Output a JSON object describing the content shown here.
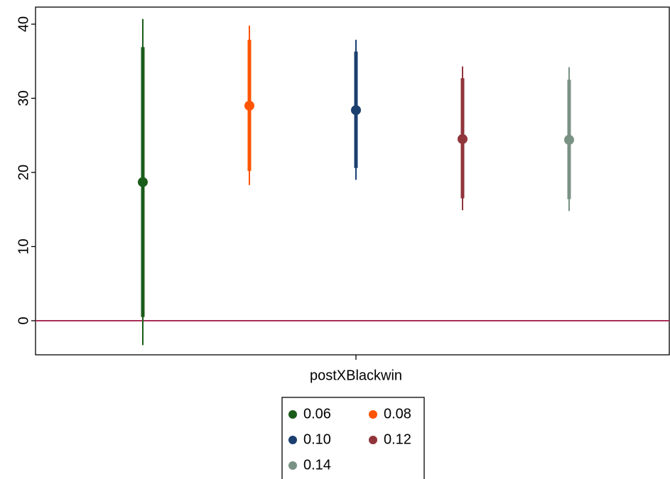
{
  "chart_data": {
    "type": "coefplot",
    "categories": [
      "postXBlackwin"
    ],
    "ylim": [
      -4.6,
      42.3
    ],
    "yticks": [
      0,
      10,
      20,
      30,
      40
    ],
    "reference_line": 0,
    "reference_line_color": "#a3224c",
    "legend_position": "bottom",
    "series": [
      {
        "name": "0.06",
        "color": "#1a5c1a",
        "values": [
          18.7
        ],
        "inner_ci": [
          [
            0.5,
            36.9
          ]
        ],
        "outer_ci": [
          [
            -3.3,
            40.7
          ]
        ]
      },
      {
        "name": "0.08",
        "color": "#ff5500",
        "values": [
          29.0
        ],
        "inner_ci": [
          [
            20.2,
            37.9
          ]
        ],
        "outer_ci": [
          [
            18.3,
            39.8
          ]
        ]
      },
      {
        "name": "0.10",
        "color": "#1b3f6f",
        "values": [
          28.4
        ],
        "inner_ci": [
          [
            20.6,
            36.3
          ]
        ],
        "outer_ci": [
          [
            19.0,
            37.9
          ]
        ]
      },
      {
        "name": "0.12",
        "color": "#90353b",
        "values": [
          24.5
        ],
        "inner_ci": [
          [
            16.5,
            32.7
          ]
        ],
        "outer_ci": [
          [
            14.9,
            34.3
          ]
        ]
      },
      {
        "name": "0.14",
        "color": "#7a9284",
        "values": [
          24.4
        ],
        "inner_ci": [
          [
            16.4,
            32.5
          ]
        ],
        "outer_ci": [
          [
            14.8,
            34.2
          ]
        ]
      }
    ]
  }
}
